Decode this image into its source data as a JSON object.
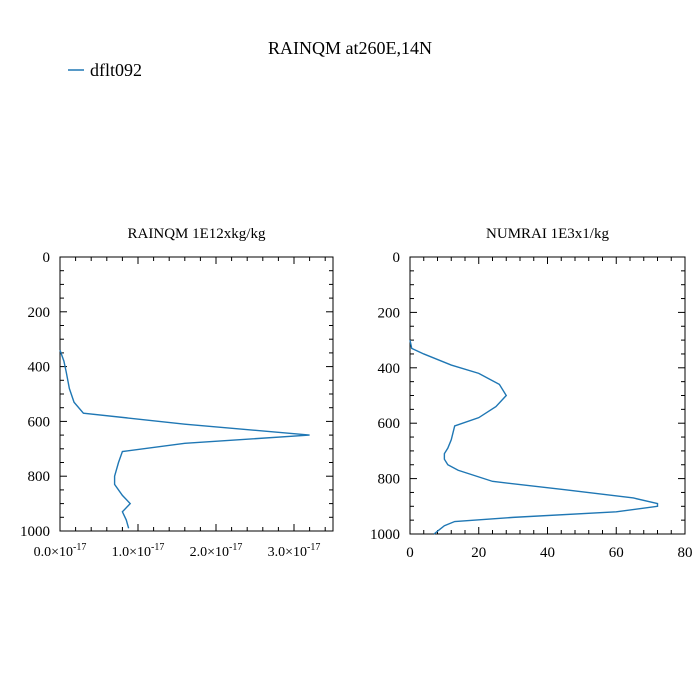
{
  "figure": {
    "title": "RAINQM at260E,14N",
    "legend": {
      "label": "dflt092",
      "color": "#1f77b4"
    }
  },
  "chart_data": [
    {
      "type": "line",
      "title": "RAINQM  1E12xkg/kg",
      "orientation": "vertical-profile",
      "x_axis": {
        "min": 0.0,
        "max": 3.5e-17,
        "ticks": [
          0.0,
          1e-17,
          2e-17,
          3e-17
        ],
        "tick_labels_mantissa": [
          "0.0",
          "1.0",
          "2.0",
          "3.0"
        ],
        "tick_labels_exponent": "-17"
      },
      "y_axis": {
        "min": 0,
        "max": 1000,
        "inverted": true,
        "ticks": [
          0,
          200,
          400,
          600,
          800,
          1000
        ],
        "tick_labels": [
          "0",
          "200",
          "400",
          "600",
          "800",
          "1000"
        ]
      },
      "series": [
        {
          "color": "#1f77b4",
          "points": [
            [
              0.0,
              340
            ],
            [
              5e-19,
              380
            ],
            [
              8e-19,
              420
            ],
            [
              1.2e-18,
              480
            ],
            [
              1.8e-18,
              530
            ],
            [
              3e-18,
              570
            ],
            [
              1.6e-17,
              610
            ],
            [
              3.2e-17,
              650
            ],
            [
              1.6e-17,
              680
            ],
            [
              8e-18,
              710
            ],
            [
              7.5e-18,
              750
            ],
            [
              7e-18,
              800
            ],
            [
              7e-18,
              830
            ],
            [
              8e-18,
              870
            ],
            [
              9e-18,
              900
            ],
            [
              8e-18,
              930
            ],
            [
              8.5e-18,
              960
            ],
            [
              8.8e-18,
              990
            ]
          ]
        }
      ]
    },
    {
      "type": "line",
      "title": "NUMRAI  1E3x1/kg",
      "orientation": "vertical-profile",
      "x_axis": {
        "min": 0,
        "max": 80,
        "ticks": [
          0,
          20,
          40,
          60,
          80
        ],
        "tick_labels": [
          "0",
          "20",
          "40",
          "60",
          "80"
        ]
      },
      "y_axis": {
        "min": 0,
        "max": 1000,
        "inverted": true,
        "ticks": [
          0,
          200,
          400,
          600,
          800,
          1000
        ],
        "tick_labels": [
          "0",
          "200",
          "400",
          "600",
          "800",
          "1000"
        ]
      },
      "series": [
        {
          "color": "#1f77b4",
          "points": [
            [
              0,
              300
            ],
            [
              0.5,
              330
            ],
            [
              4,
              350
            ],
            [
              12,
              390
            ],
            [
              20,
              420
            ],
            [
              26,
              460
            ],
            [
              28,
              500
            ],
            [
              25,
              540
            ],
            [
              20,
              580
            ],
            [
              13,
              610
            ],
            [
              12,
              660
            ],
            [
              11,
              690
            ],
            [
              10,
              710
            ],
            [
              10,
              730
            ],
            [
              11,
              750
            ],
            [
              14,
              770
            ],
            [
              24,
              810
            ],
            [
              45,
              840
            ],
            [
              65,
              870
            ],
            [
              72,
              890
            ],
            [
              72,
              900
            ],
            [
              60,
              920
            ],
            [
              30,
              940
            ],
            [
              13,
              955
            ],
            [
              10,
              970
            ],
            [
              8,
              990
            ],
            [
              7,
              1000
            ]
          ]
        }
      ]
    }
  ]
}
